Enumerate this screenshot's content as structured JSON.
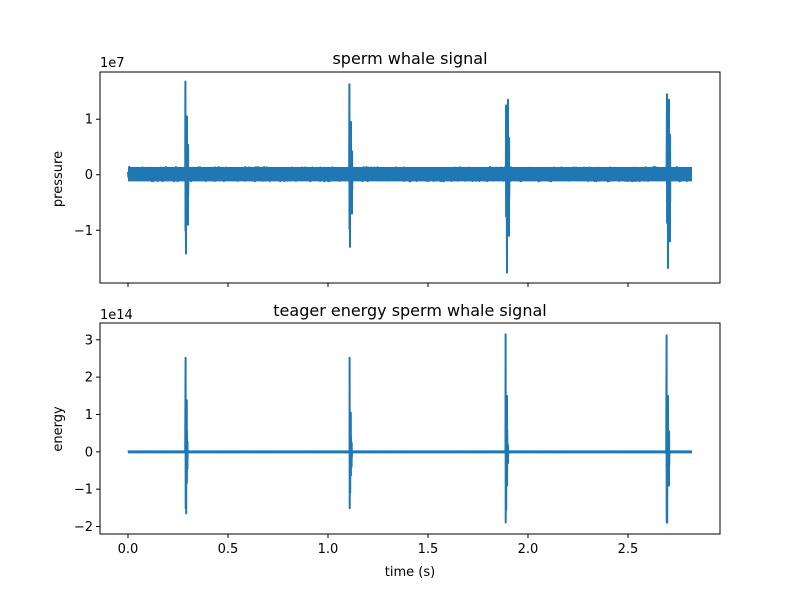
{
  "chart_data": [
    {
      "type": "line",
      "title": "sperm whale signal",
      "xlabel": "",
      "ylabel": "pressure",
      "offset_text": "1e7",
      "xlim": [
        -0.14,
        2.96
      ],
      "ylim": [
        -1.95,
        1.85
      ],
      "y_scale_note": "values in units of 1e7",
      "yticks": [
        -1,
        0,
        1
      ],
      "ytick_labels": [
        "−1",
        "0",
        "1"
      ],
      "xticks": [
        0.0,
        0.5,
        1.0,
        1.5,
        2.0,
        2.5
      ],
      "xtick_labels": [
        "",
        "",
        "",
        "",
        "",
        ""
      ],
      "color": "#1f77b4",
      "noise_band": [
        -0.12,
        0.14
      ],
      "series": [
        {
          "x": [
            0.0,
            0.28,
            0.287,
            0.29,
            0.295,
            0.3,
            0.31,
            1.1,
            1.107,
            1.11,
            1.115,
            1.12,
            1.13,
            1.885,
            1.89,
            1.895,
            1.9,
            1.905,
            1.915,
            2.69,
            2.695,
            2.7,
            2.705,
            2.71,
            2.72,
            2.82
          ],
          "y": [
            0.0,
            0.15,
            1.68,
            -1.42,
            1.05,
            -0.9,
            0.2,
            0.12,
            1.63,
            -1.3,
            0.95,
            -0.7,
            0.2,
            0.1,
            1.25,
            -1.76,
            1.35,
            -1.1,
            0.25,
            0.1,
            1.45,
            -1.68,
            1.35,
            -1.2,
            0.2,
            0.0
          ]
        }
      ]
    },
    {
      "type": "line",
      "title": "teager energy sperm whale signal",
      "xlabel": "time (s)",
      "ylabel": "energy",
      "offset_text": "1e14",
      "xlim": [
        -0.14,
        2.96
      ],
      "ylim": [
        -2.2,
        3.45
      ],
      "y_scale_note": "values in units of 1e14",
      "yticks": [
        -2,
        -1,
        0,
        1,
        2,
        3
      ],
      "ytick_labels": [
        "−2",
        "−1",
        "0",
        "1",
        "2",
        "3"
      ],
      "xticks": [
        0.0,
        0.5,
        1.0,
        1.5,
        2.0,
        2.5
      ],
      "xtick_labels": [
        "0.0",
        "0.5",
        "1.0",
        "1.5",
        "2.0",
        "2.5"
      ],
      "color": "#1f77b4",
      "noise_band": [
        -0.01,
        0.01
      ],
      "series": [
        {
          "x": [
            0.0,
            0.285,
            0.288,
            0.291,
            0.294,
            0.297,
            0.305,
            1.105,
            1.108,
            1.111,
            1.114,
            1.118,
            1.125,
            1.885,
            1.888,
            1.891,
            1.895,
            1.9,
            1.91,
            2.69,
            2.693,
            2.696,
            2.7,
            2.705,
            2.715,
            2.82
          ],
          "y": [
            0.0,
            0.0,
            2.52,
            -1.65,
            1.38,
            -0.45,
            0.0,
            0.0,
            2.52,
            -1.1,
            1.05,
            -0.4,
            0.0,
            0.0,
            3.15,
            -1.55,
            1.5,
            -0.3,
            0.0,
            0.0,
            3.12,
            -1.9,
            1.5,
            -0.9,
            0.0,
            0.0
          ]
        }
      ]
    }
  ]
}
